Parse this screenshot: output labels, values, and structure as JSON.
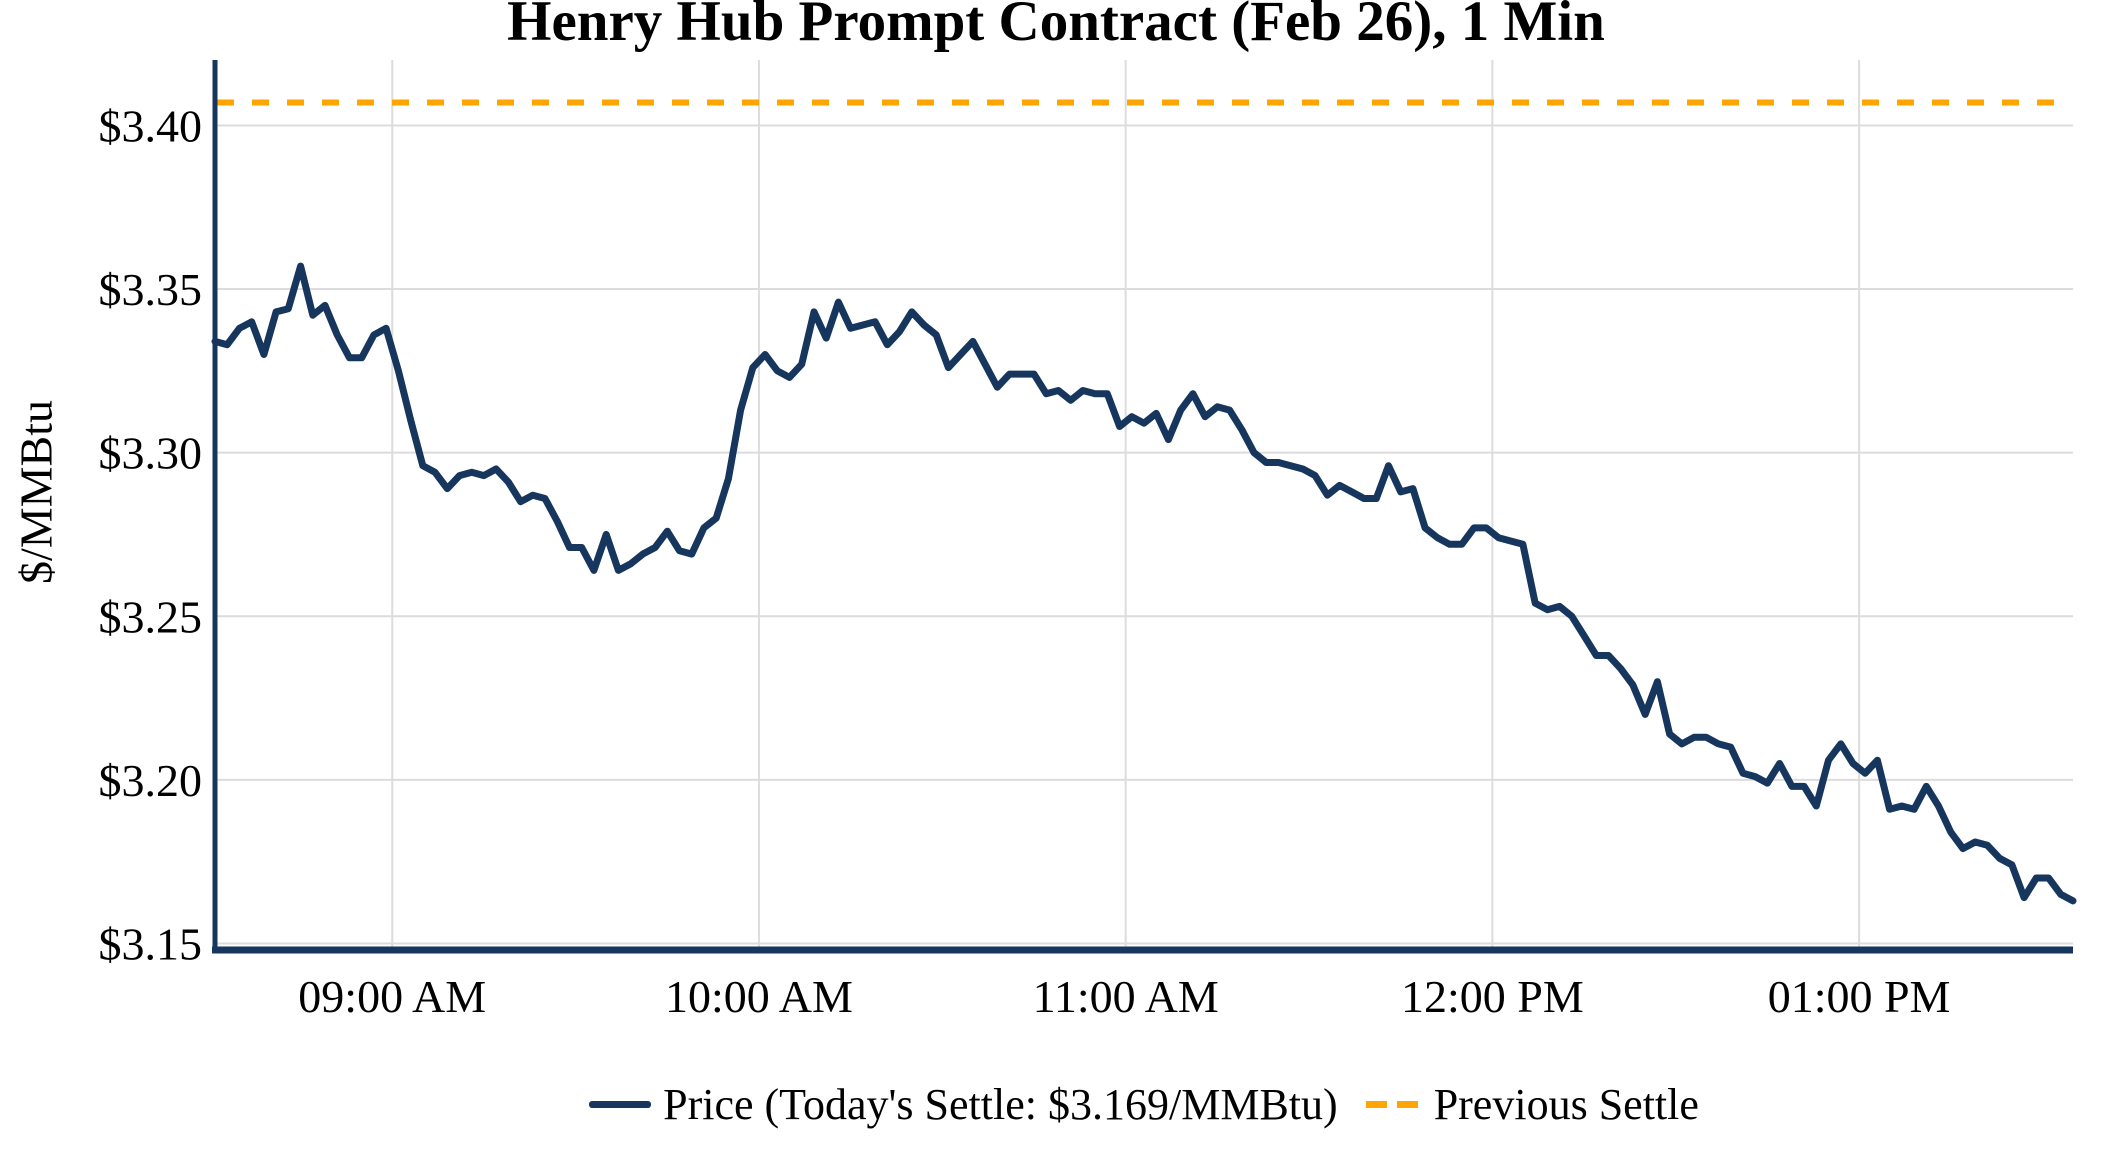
{
  "title": "Henry Hub Prompt Contract (Feb 26), 1 Min",
  "y_axis": {
    "label": "$/MMBtu"
  },
  "legend": {
    "price_label": "Price (Today's Settle: $3.169/MMBtu)",
    "prev_settle_label": "Previous Settle"
  },
  "colors": {
    "price": "#17365D",
    "previous_settle": "#FFA500",
    "grid": "#DCDCDC",
    "background": "#FFFFFF",
    "text": "#000000"
  },
  "chart_data": {
    "type": "line",
    "title": "Henry Hub Prompt Contract (Feb 26), 1 Min",
    "xlabel": "",
    "ylabel": "$/MMBtu",
    "ylim": [
      3.148,
      3.42
    ],
    "grid": true,
    "legend_position": "bottom",
    "start_time": "08:31 AM",
    "end_time": "01:35 PM",
    "interval_minutes": 2,
    "x_ticks": [
      "09:00 AM",
      "10:00 AM",
      "11:00 AM",
      "12:00 PM",
      "01:00 PM"
    ],
    "y_ticks": [
      {
        "label": "$3.15",
        "value": 3.15
      },
      {
        "label": "$3.20",
        "value": 3.2
      },
      {
        "label": "$3.25",
        "value": 3.25
      },
      {
        "label": "$3.30",
        "value": 3.3
      },
      {
        "label": "$3.35",
        "value": 3.35
      },
      {
        "label": "$3.40",
        "value": 3.4
      }
    ],
    "today_settle": 3.169,
    "previous_settle": 3.407,
    "series": [
      {
        "name": "Price",
        "type": "line",
        "values": [
          3.334,
          3.333,
          3.338,
          3.34,
          3.33,
          3.343,
          3.344,
          3.357,
          3.342,
          3.345,
          3.336,
          3.329,
          3.329,
          3.336,
          3.338,
          3.325,
          3.31,
          3.296,
          3.294,
          3.289,
          3.293,
          3.294,
          3.293,
          3.295,
          3.291,
          3.285,
          3.287,
          3.286,
          3.279,
          3.271,
          3.271,
          3.264,
          3.275,
          3.264,
          3.266,
          3.269,
          3.271,
          3.276,
          3.27,
          3.269,
          3.277,
          3.28,
          3.292,
          3.313,
          3.326,
          3.33,
          3.325,
          3.323,
          3.327,
          3.343,
          3.335,
          3.346,
          3.338,
          3.339,
          3.34,
          3.333,
          3.337,
          3.343,
          3.339,
          3.336,
          3.326,
          3.33,
          3.334,
          3.327,
          3.32,
          3.324,
          3.324,
          3.324,
          3.318,
          3.319,
          3.316,
          3.319,
          3.318,
          3.318,
          3.308,
          3.311,
          3.309,
          3.312,
          3.304,
          3.313,
          3.318,
          3.311,
          3.314,
          3.313,
          3.307,
          3.3,
          3.297,
          3.297,
          3.296,
          3.295,
          3.293,
          3.287,
          3.29,
          3.288,
          3.286,
          3.286,
          3.296,
          3.288,
          3.289,
          3.277,
          3.274,
          3.272,
          3.272,
          3.277,
          3.277,
          3.274,
          3.273,
          3.272,
          3.254,
          3.252,
          3.253,
          3.25,
          3.244,
          3.238,
          3.238,
          3.234,
          3.229,
          3.22,
          3.23,
          3.214,
          3.211,
          3.213,
          3.213,
          3.211,
          3.21,
          3.202,
          3.201,
          3.199,
          3.205,
          3.198,
          3.198,
          3.192,
          3.206,
          3.211,
          3.205,
          3.202,
          3.206,
          3.191,
          3.192,
          3.191,
          3.198,
          3.192,
          3.184,
          3.179,
          3.181,
          3.18,
          3.176,
          3.174,
          3.164,
          3.17,
          3.17,
          3.165,
          3.163
        ]
      },
      {
        "name": "Previous Settle",
        "type": "hline",
        "value": 3.407,
        "style": "dashed"
      }
    ]
  }
}
